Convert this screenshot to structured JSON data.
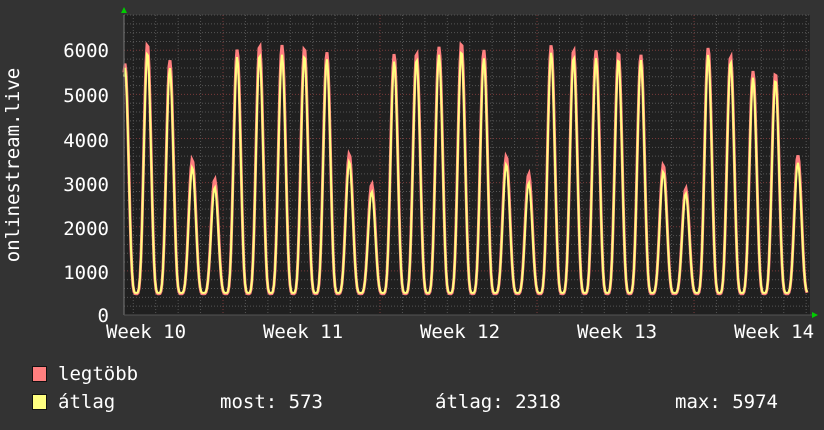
{
  "chart_data": {
    "type": "line",
    "ylabel": "onlinestream.live",
    "ylim": [
      0,
      6800
    ],
    "yticks": [
      "0",
      "1000",
      "2000",
      "3000",
      "4000",
      "5000",
      "6000"
    ],
    "xticks": [
      "Week 10",
      "Week 11",
      "Week 12",
      "Week 13",
      "Week 14"
    ],
    "grid": true,
    "colors": {
      "background": "#333333",
      "plot": "#202020",
      "grid_minor": "#555555",
      "grid_major": "#7a3a3a",
      "axis_arrow": "#00cc00"
    },
    "series": [
      {
        "name": "legtöbb",
        "color": "#ff7f7f",
        "daily_peaks": [
          5700,
          6150,
          5780,
          3520,
          3080,
          6020,
          6120,
          6120,
          6060,
          5960,
          3650,
          2970,
          5920,
          5950,
          6080,
          6170,
          6010,
          3600,
          3200,
          6120,
          6020,
          6000,
          5960,
          5900,
          3400,
          2870,
          6060,
          5880,
          5530,
          5480,
          3620
        ],
        "daily_min": 480
      },
      {
        "name": "átlag",
        "color": "#ffff80",
        "daily_peaks": [
          5600,
          5950,
          5600,
          3350,
          2900,
          5850,
          5900,
          5900,
          5880,
          5800,
          3480,
          2800,
          5750,
          5800,
          5900,
          5980,
          5820,
          3420,
          3000,
          5950,
          5850,
          5820,
          5800,
          5780,
          3250,
          2760,
          5900,
          5750,
          5380,
          5330,
          3450
        ],
        "daily_min": 500
      }
    ]
  },
  "legend": {
    "max_label": "legtöbb",
    "avg_label": "átlag",
    "now": "most: 573",
    "average": "átlag: 2318",
    "maximum": "max: 5974"
  }
}
